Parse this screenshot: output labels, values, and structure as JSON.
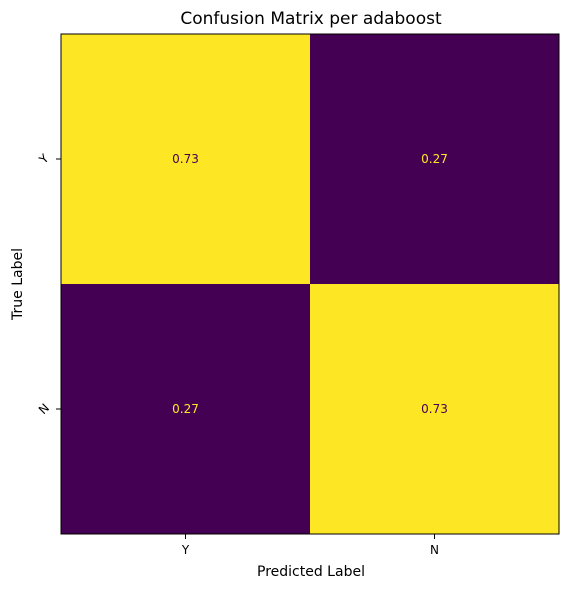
{
  "chart_data": {
    "type": "heatmap",
    "title": "Confusion Matrix per adaboost",
    "xlabel": "Predicted Label",
    "ylabel": "True Label",
    "x_categories": [
      "Y",
      "N"
    ],
    "y_categories": [
      "Y",
      "N"
    ],
    "values": [
      [
        0.73,
        0.27
      ],
      [
        0.27,
        0.73
      ]
    ],
    "value_labels": [
      [
        "0.73",
        "0.27"
      ],
      [
        "0.27",
        "0.73"
      ]
    ],
    "colorscale": "viridis",
    "colormap_range": [
      0.27,
      0.73
    ],
    "colors": {
      "low": "#440154",
      "high": "#fde725",
      "text_on_low": "#fde725",
      "text_on_high": "#440154"
    },
    "grid": false,
    "legend": "none"
  }
}
